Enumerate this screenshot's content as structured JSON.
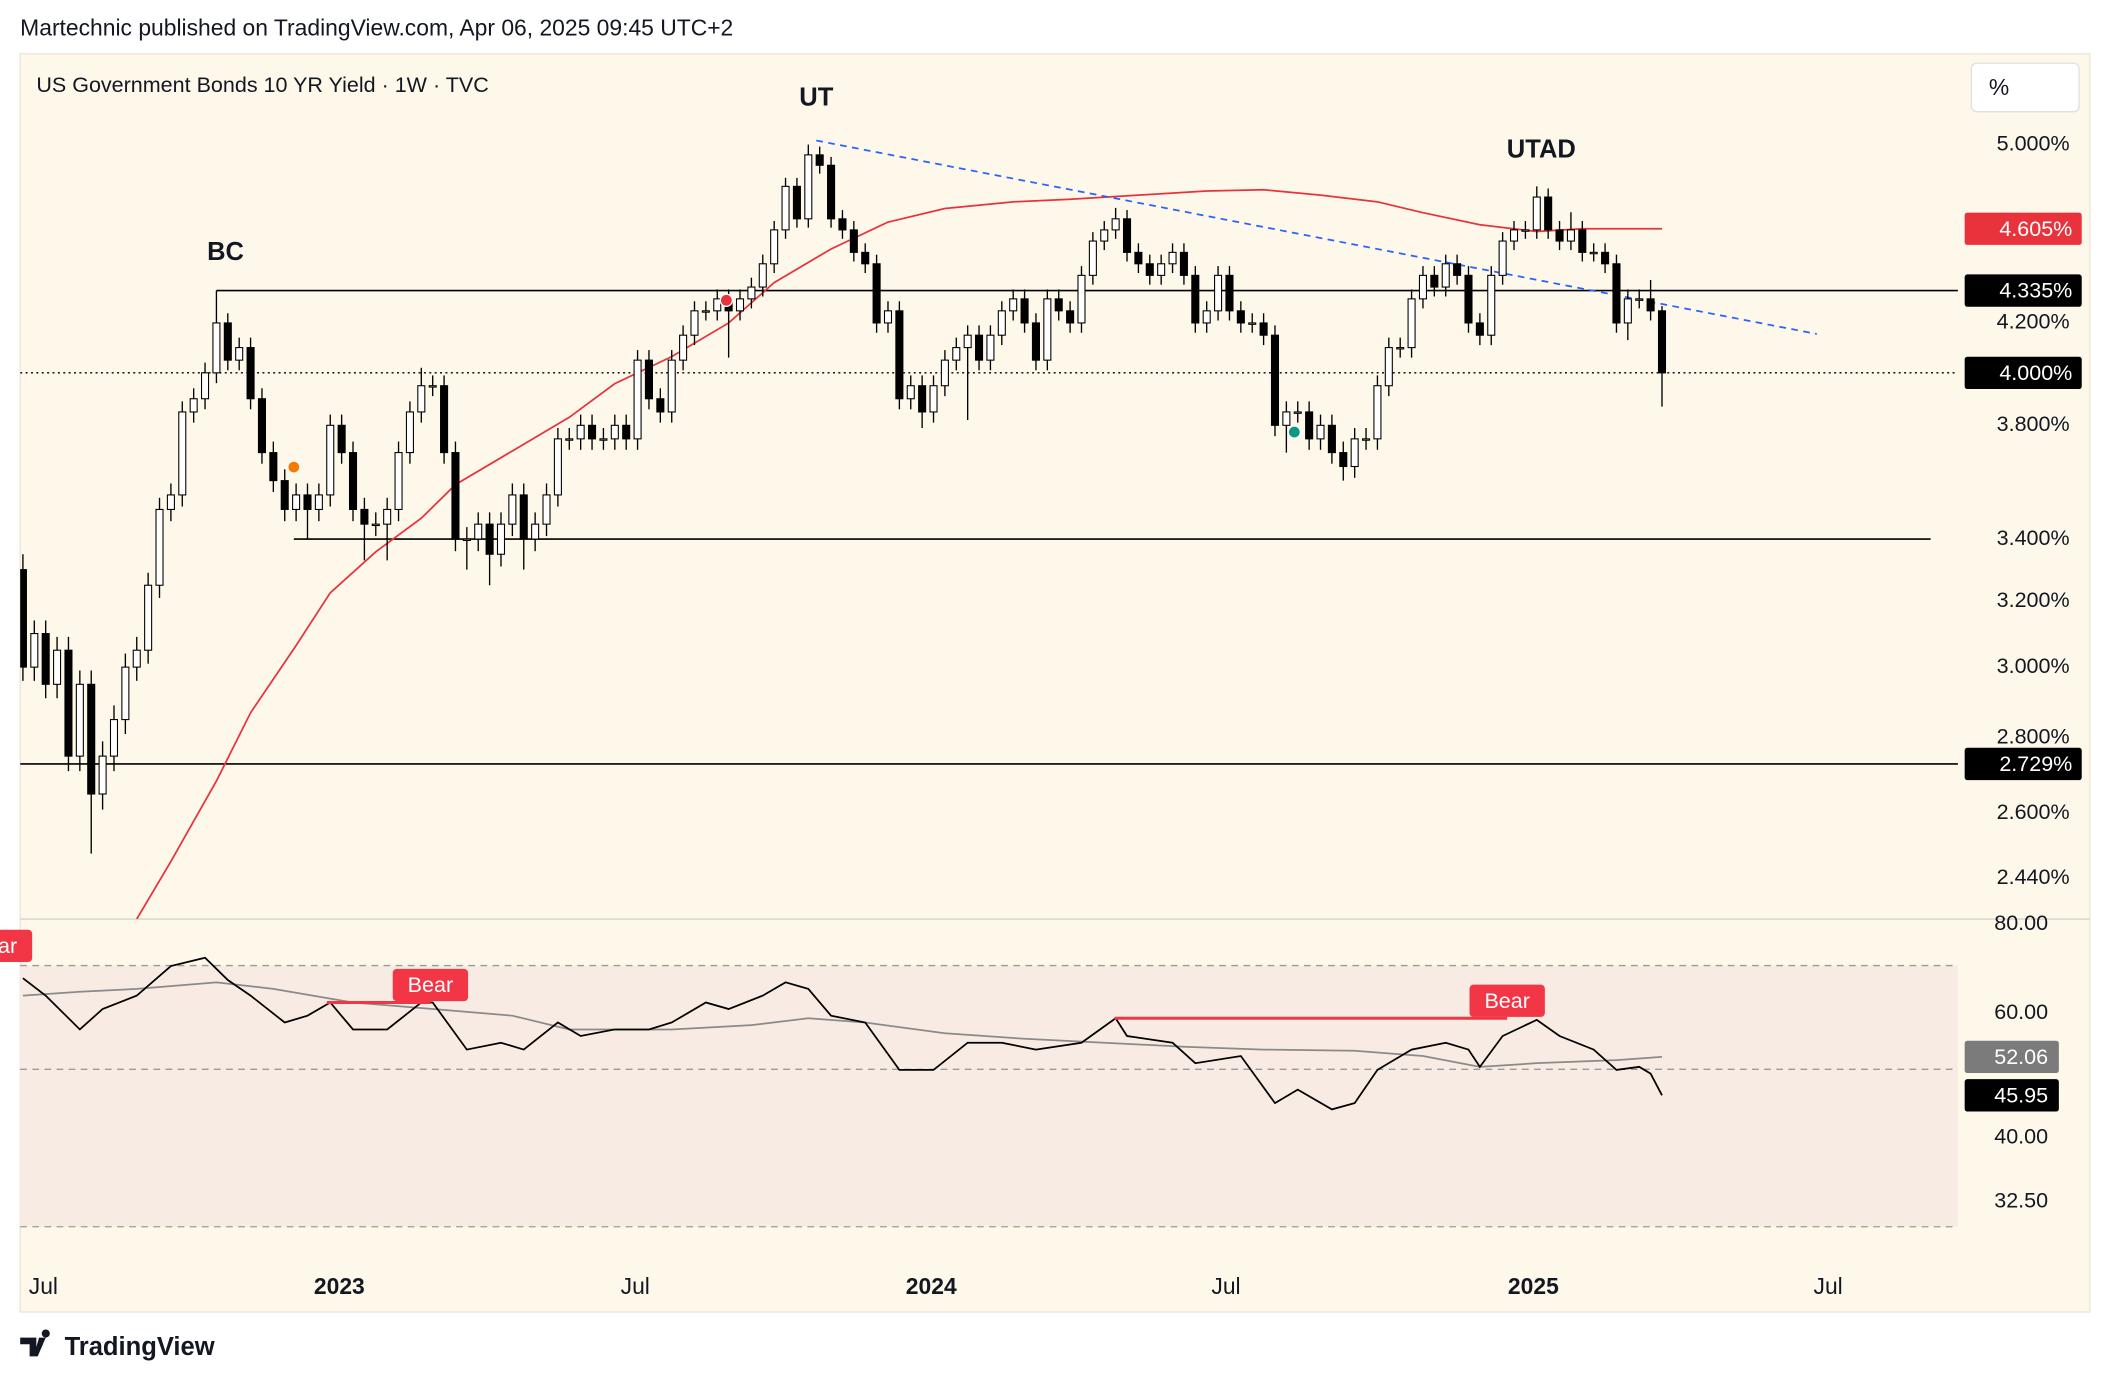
{
  "chart_data": {
    "type": "candlestick",
    "publisher": "Martechnic published on TradingView.com, Apr 06, 2025 09:45 UTC+2",
    "title": "US Government Bonds 10 YR Yield · 1W · TVC",
    "unit_button": "%",
    "brand": "TradingView",
    "up_color": "#ffffff",
    "down_color": "#000000",
    "candles": [
      [
        3.3,
        3.35,
        2.96,
        3.0
      ],
      [
        3.0,
        3.14,
        2.96,
        3.1
      ],
      [
        3.1,
        3.14,
        2.91,
        2.95
      ],
      [
        2.95,
        3.09,
        2.91,
        3.05
      ],
      [
        3.05,
        3.09,
        2.71,
        2.75
      ],
      [
        2.75,
        2.99,
        2.71,
        2.95
      ],
      [
        2.95,
        2.99,
        2.5,
        2.65
      ],
      [
        2.65,
        2.79,
        2.61,
        2.75
      ],
      [
        2.75,
        2.89,
        2.71,
        2.85
      ],
      [
        2.85,
        3.04,
        2.81,
        3.0
      ],
      [
        3.0,
        3.09,
        2.96,
        3.05
      ],
      [
        3.05,
        3.29,
        3.01,
        3.25
      ],
      [
        3.25,
        3.54,
        3.21,
        3.5
      ],
      [
        3.5,
        3.59,
        3.46,
        3.55
      ],
      [
        3.55,
        3.89,
        3.51,
        3.85
      ],
      [
        3.85,
        3.94,
        3.81,
        3.9
      ],
      [
        3.9,
        4.04,
        3.86,
        4.0
      ],
      [
        4.0,
        4.335,
        3.96,
        4.2
      ],
      [
        4.2,
        4.24,
        4.01,
        4.05
      ],
      [
        4.05,
        4.14,
        4.01,
        4.1
      ],
      [
        4.1,
        4.14,
        3.86,
        3.9
      ],
      [
        3.9,
        3.94,
        3.66,
        3.7
      ],
      [
        3.7,
        3.74,
        3.56,
        3.6
      ],
      [
        3.6,
        3.64,
        3.46,
        3.5
      ],
      [
        3.5,
        3.59,
        3.46,
        3.55
      ],
      [
        3.55,
        3.59,
        3.4,
        3.5
      ],
      [
        3.5,
        3.59,
        3.46,
        3.55
      ],
      [
        3.55,
        3.84,
        3.51,
        3.8
      ],
      [
        3.8,
        3.84,
        3.66,
        3.7
      ],
      [
        3.7,
        3.74,
        3.46,
        3.5
      ],
      [
        3.5,
        3.54,
        3.33,
        3.45
      ],
      [
        3.45,
        3.49,
        3.41,
        3.45
      ],
      [
        3.45,
        3.54,
        3.33,
        3.5
      ],
      [
        3.5,
        3.74,
        3.46,
        3.7
      ],
      [
        3.7,
        3.89,
        3.66,
        3.85
      ],
      [
        3.85,
        4.02,
        3.81,
        3.95
      ],
      [
        3.95,
        3.99,
        3.91,
        3.95
      ],
      [
        3.95,
        3.99,
        3.66,
        3.7
      ],
      [
        3.7,
        3.74,
        3.36,
        3.4
      ],
      [
        3.4,
        3.44,
        3.3,
        3.4
      ],
      [
        3.4,
        3.49,
        3.36,
        3.45
      ],
      [
        3.45,
        3.49,
        3.25,
        3.35
      ],
      [
        3.35,
        3.49,
        3.31,
        3.45
      ],
      [
        3.45,
        3.59,
        3.41,
        3.55
      ],
      [
        3.55,
        3.59,
        3.3,
        3.4
      ],
      [
        3.4,
        3.49,
        3.36,
        3.45
      ],
      [
        3.45,
        3.59,
        3.41,
        3.55
      ],
      [
        3.55,
        3.79,
        3.51,
        3.75
      ],
      [
        3.75,
        3.79,
        3.71,
        3.75
      ],
      [
        3.75,
        3.84,
        3.71,
        3.8
      ],
      [
        3.8,
        3.84,
        3.71,
        3.75
      ],
      [
        3.75,
        3.79,
        3.71,
        3.75
      ],
      [
        3.75,
        3.84,
        3.71,
        3.8
      ],
      [
        3.8,
        3.84,
        3.71,
        3.75
      ],
      [
        3.75,
        4.09,
        3.71,
        4.05
      ],
      [
        4.05,
        4.09,
        3.86,
        3.9
      ],
      [
        3.9,
        3.94,
        3.81,
        3.85
      ],
      [
        3.85,
        4.09,
        3.81,
        4.05
      ],
      [
        4.05,
        4.19,
        4.01,
        4.15
      ],
      [
        4.15,
        4.29,
        4.11,
        4.25
      ],
      [
        4.25,
        4.29,
        4.21,
        4.25
      ],
      [
        4.25,
        4.34,
        4.21,
        4.3
      ],
      [
        4.3,
        4.34,
        4.06,
        4.25
      ],
      [
        4.25,
        4.34,
        4.21,
        4.3
      ],
      [
        4.3,
        4.39,
        4.26,
        4.35
      ],
      [
        4.35,
        4.49,
        4.31,
        4.45
      ],
      [
        4.45,
        4.64,
        4.41,
        4.6
      ],
      [
        4.6,
        4.84,
        4.56,
        4.8
      ],
      [
        4.8,
        4.84,
        4.61,
        4.65
      ],
      [
        4.65,
        5.0,
        4.61,
        4.95
      ],
      [
        4.95,
        4.99,
        4.86,
        4.9
      ],
      [
        4.9,
        4.94,
        4.61,
        4.65
      ],
      [
        4.65,
        4.69,
        4.56,
        4.6
      ],
      [
        4.6,
        4.64,
        4.46,
        4.5
      ],
      [
        4.5,
        4.54,
        4.41,
        4.45
      ],
      [
        4.45,
        4.49,
        4.16,
        4.2
      ],
      [
        4.2,
        4.29,
        4.16,
        4.25
      ],
      [
        4.25,
        4.29,
        3.86,
        3.9
      ],
      [
        3.9,
        3.99,
        3.86,
        3.95
      ],
      [
        3.95,
        3.99,
        3.79,
        3.85
      ],
      [
        3.85,
        3.99,
        3.81,
        3.95
      ],
      [
        3.95,
        4.09,
        3.91,
        4.05
      ],
      [
        4.05,
        4.14,
        4.01,
        4.1
      ],
      [
        4.1,
        4.19,
        3.82,
        4.15
      ],
      [
        4.15,
        4.19,
        4.01,
        4.05
      ],
      [
        4.05,
        4.19,
        4.01,
        4.15
      ],
      [
        4.15,
        4.29,
        4.11,
        4.25
      ],
      [
        4.25,
        4.34,
        4.21,
        4.3
      ],
      [
        4.3,
        4.34,
        4.16,
        4.2
      ],
      [
        4.2,
        4.24,
        4.01,
        4.05
      ],
      [
        4.05,
        4.34,
        4.01,
        4.3
      ],
      [
        4.3,
        4.34,
        4.21,
        4.25
      ],
      [
        4.25,
        4.29,
        4.16,
        4.2
      ],
      [
        4.2,
        4.44,
        4.16,
        4.4
      ],
      [
        4.4,
        4.59,
        4.36,
        4.55
      ],
      [
        4.55,
        4.64,
        4.51,
        4.6
      ],
      [
        4.6,
        4.7,
        4.56,
        4.65
      ],
      [
        4.65,
        4.69,
        4.46,
        4.5
      ],
      [
        4.5,
        4.54,
        4.41,
        4.45
      ],
      [
        4.45,
        4.49,
        4.36,
        4.4
      ],
      [
        4.4,
        4.49,
        4.36,
        4.45
      ],
      [
        4.45,
        4.54,
        4.41,
        4.5
      ],
      [
        4.5,
        4.54,
        4.36,
        4.4
      ],
      [
        4.4,
        4.44,
        4.16,
        4.2
      ],
      [
        4.2,
        4.29,
        4.16,
        4.25
      ],
      [
        4.25,
        4.44,
        4.21,
        4.4
      ],
      [
        4.4,
        4.44,
        4.21,
        4.25
      ],
      [
        4.25,
        4.29,
        4.16,
        4.2
      ],
      [
        4.2,
        4.24,
        4.16,
        4.2
      ],
      [
        4.2,
        4.24,
        4.11,
        4.15
      ],
      [
        4.15,
        4.19,
        3.76,
        3.8
      ],
      [
        3.8,
        3.89,
        3.7,
        3.85
      ],
      [
        3.85,
        3.89,
        3.81,
        3.85
      ],
      [
        3.85,
        3.89,
        3.71,
        3.75
      ],
      [
        3.75,
        3.84,
        3.71,
        3.8
      ],
      [
        3.8,
        3.84,
        3.66,
        3.7
      ],
      [
        3.7,
        3.74,
        3.6,
        3.65
      ],
      [
        3.65,
        3.79,
        3.61,
        3.75
      ],
      [
        3.75,
        3.79,
        3.71,
        3.75
      ],
      [
        3.75,
        3.99,
        3.71,
        3.95
      ],
      [
        3.95,
        4.14,
        3.91,
        4.1
      ],
      [
        4.1,
        4.14,
        4.06,
        4.1
      ],
      [
        4.1,
        4.34,
        4.06,
        4.3
      ],
      [
        4.3,
        4.44,
        4.26,
        4.4
      ],
      [
        4.4,
        4.44,
        4.31,
        4.35
      ],
      [
        4.35,
        4.49,
        4.31,
        4.45
      ],
      [
        4.45,
        4.49,
        4.36,
        4.4
      ],
      [
        4.4,
        4.44,
        4.16,
        4.2
      ],
      [
        4.2,
        4.24,
        4.11,
        4.15
      ],
      [
        4.15,
        4.44,
        4.11,
        4.4
      ],
      [
        4.4,
        4.59,
        4.36,
        4.55
      ],
      [
        4.55,
        4.64,
        4.51,
        4.6
      ],
      [
        4.6,
        4.64,
        4.56,
        4.6
      ],
      [
        4.6,
        4.8,
        4.56,
        4.75
      ],
      [
        4.75,
        4.79,
        4.56,
        4.6
      ],
      [
        4.6,
        4.64,
        4.51,
        4.55
      ],
      [
        4.55,
        4.68,
        4.51,
        4.6
      ],
      [
        4.6,
        4.64,
        4.46,
        4.5
      ],
      [
        4.5,
        4.54,
        4.46,
        4.5
      ],
      [
        4.5,
        4.54,
        4.41,
        4.45
      ],
      [
        4.45,
        4.49,
        4.16,
        4.2
      ],
      [
        4.2,
        4.34,
        4.13,
        4.3
      ],
      [
        4.3,
        4.34,
        4.26,
        4.3
      ],
      [
        4.3,
        4.38,
        4.21,
        4.25
      ],
      [
        4.25,
        4.27,
        3.87,
        4.0
      ]
    ],
    "xlim": [
      -0.24,
      170
    ],
    "xticks": [
      {
        "value": 1.8,
        "label": "Jul"
      },
      {
        "value": 27.8,
        "label": "2023"
      },
      {
        "value": 53.8,
        "label": "Jul"
      },
      {
        "value": 79.8,
        "label": "2024"
      },
      {
        "value": 105.7,
        "label": "Jul"
      },
      {
        "value": 132.7,
        "label": "2025"
      },
      {
        "value": 158.6,
        "label": "Jul"
      }
    ],
    "ylim": [
      2.345,
      5.464
    ],
    "log": true,
    "yticks": [
      {
        "value": 5,
        "label": "5.000%"
      },
      {
        "value": 4.2,
        "label": "4.200%"
      },
      {
        "value": 3.8,
        "label": "3.800%"
      },
      {
        "value": 3.4,
        "label": "3.400%"
      },
      {
        "value": 3.2,
        "label": "3.200%"
      },
      {
        "value": 3,
        "label": "3.000%"
      },
      {
        "value": 2.8,
        "label": "2.800%"
      },
      {
        "value": 2.6,
        "label": "2.600%"
      },
      {
        "value": 2.44,
        "label": "2.440%"
      }
    ],
    "ma": {
      "color": "#e8333c",
      "label": "4.605%",
      "x": [
        10,
        13,
        17,
        20,
        24,
        27,
        31,
        35,
        38,
        43,
        48,
        52,
        57,
        62,
        66,
        71,
        76,
        81,
        87,
        92,
        98,
        104,
        109,
        114,
        119,
        123,
        128,
        133,
        137,
        144
      ],
      "values": [
        2.345,
        2.481,
        2.684,
        2.869,
        3.064,
        3.226,
        3.358,
        3.47,
        3.586,
        3.706,
        3.83,
        3.958,
        4.064,
        4.2,
        4.369,
        4.515,
        4.635,
        4.697,
        4.728,
        4.74,
        4.759,
        4.778,
        4.784,
        4.759,
        4.728,
        4.678,
        4.623,
        4.593,
        4.605,
        4.605
      ]
    },
    "levels": [
      {
        "value": 4.335,
        "label": "4.335%",
        "from": 17
      },
      {
        "value": 4.0,
        "label": "4.000%",
        "dotted": true
      },
      {
        "value": 3.4,
        "from": 23.8,
        "to": 167.6
      },
      {
        "value": 2.729,
        "label": "2.729%"
      }
    ],
    "trendline": {
      "color": "#2962ff",
      "x": [
        69.7,
        157.6
      ],
      "values": [
        5.02,
        4.155
      ]
    },
    "annotations": [
      {
        "text": "BC",
        "x": 17.8,
        "y": 4.497
      },
      {
        "text": "UT",
        "x": 69.7,
        "y": 5.23
      },
      {
        "text": "UTAD",
        "x": 133.4,
        "y": 4.97
      }
    ],
    "signals": [
      {
        "x": 23.8,
        "y": 3.648,
        "color": "#f57c00"
      },
      {
        "x": 61.8,
        "y": 4.294,
        "color": "#e8333c"
      },
      {
        "x": 111.7,
        "y": 3.775,
        "color": "#089981"
      }
    ],
    "rsi": {
      "ylim": [
        28.3,
        81.4
      ],
      "log": true,
      "yticks": [
        {
          "value": 80,
          "label": "80.00"
        },
        {
          "value": 60,
          "label": "60.00"
        },
        {
          "value": 40,
          "label": "40.00"
        },
        {
          "value": 32.5,
          "label": "32.50"
        }
      ],
      "bands": [
        70,
        50,
        30
      ],
      "band_color": "#f8ebe4",
      "series": [
        {
          "color": "#000000",
          "label": "45.95",
          "x": [
            0,
            2,
            5,
            7,
            10,
            13,
            16,
            18,
            20,
            23,
            25,
            27,
            29,
            32,
            35,
            36,
            39,
            42,
            44,
            47,
            49,
            52,
            55,
            57,
            60,
            62,
            65,
            67,
            69,
            71,
            74,
            77,
            80,
            83,
            86,
            89,
            93,
            96,
            97,
            101,
            103,
            107,
            110,
            112,
            115,
            117,
            119,
            122,
            125,
            127,
            128,
            130,
            133,
            135,
            138,
            140,
            142,
            143,
            144
          ],
          "values": [
            67.2,
            63.5,
            56.9,
            60.8,
            63.5,
            69.9,
            71.8,
            66.8,
            63.5,
            58.2,
            59.5,
            62.1,
            56.9,
            56.9,
            62.1,
            62.1,
            53.3,
            54.5,
            53.3,
            58.2,
            55.7,
            56.9,
            56.9,
            58.2,
            62.1,
            60.8,
            63.5,
            66.3,
            64.9,
            59.5,
            58.2,
            49.9,
            49.9,
            54.5,
            54.5,
            53.3,
            54.5,
            59.0,
            55.7,
            54.5,
            51.0,
            52.2,
            44.8,
            46.8,
            43.9,
            44.8,
            49.9,
            53.3,
            54.5,
            53.3,
            50.4,
            55.7,
            58.7,
            55.7,
            53.3,
            49.9,
            50.4,
            49.3,
            45.95
          ]
        },
        {
          "color": "#8a8a8a",
          "label": "52.06",
          "x": [
            0,
            5,
            10,
            17,
            22,
            29,
            36,
            43,
            48,
            57,
            64,
            69,
            74,
            81,
            88,
            95,
            102,
            109,
            117,
            123,
            128,
            133,
            140,
            144
          ],
          "values": [
            63.5,
            64.3,
            64.9,
            66.3,
            64.9,
            62.1,
            60.8,
            59.5,
            56.9,
            56.9,
            57.7,
            59.0,
            58.2,
            56.2,
            55.2,
            54.5,
            53.8,
            53.3,
            53.1,
            52.2,
            50.4,
            51.0,
            51.5,
            52.06
          ]
        }
      ],
      "divergences": [
        {
          "label": "Bear",
          "x": [
            -2.5,
            -2.5
          ],
          "values": [
            70.5,
            70.5
          ]
        },
        {
          "label": "Bear",
          "x": [
            26.7,
            35.8
          ],
          "values": [
            62.1,
            62.1
          ]
        },
        {
          "label": "Bear",
          "x": [
            95.9,
            130.4
          ],
          "values": [
            59.0,
            59.0
          ]
        }
      ],
      "divergence_color": "#f23645"
    }
  }
}
